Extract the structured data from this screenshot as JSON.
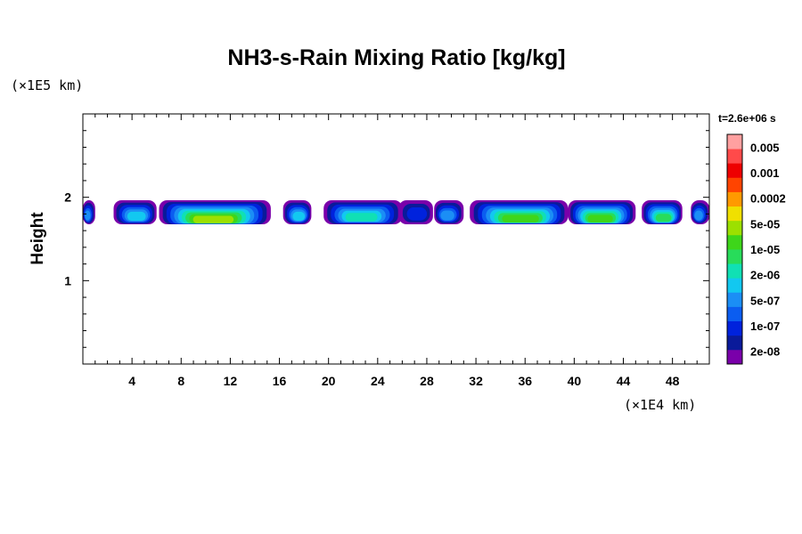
{
  "chart_data": {
    "type": "heatmap",
    "title": "NH3-s-Rain Mixing Ratio [kg/kg]",
    "ylabel": "Height",
    "x_unit": "(×1E4 km)",
    "y_unit": "(×1E5 km)",
    "time_label": "t=2.6e+06 s",
    "xlim": [
      0,
      51
    ],
    "ylim": [
      0,
      3
    ],
    "x_ticks": [
      4,
      8,
      12,
      16,
      20,
      24,
      28,
      32,
      36,
      40,
      44,
      48
    ],
    "y_ticks": [
      1,
      2
    ],
    "colorbar": {
      "colors": [
        "#7a00aa",
        "#0a1a9a",
        "#0022dd",
        "#0b5df0",
        "#1b8ef5",
        "#12c8f0",
        "#10e0b4",
        "#28dc5a",
        "#3ed61a",
        "#9ce000",
        "#f0e000",
        "#ff9a00",
        "#ff4400",
        "#ee0000",
        "#ff4a4a",
        "#ffa0a0"
      ],
      "labels": [
        "2e-08",
        "1e-07",
        "5e-07",
        "2e-06",
        "1e-05",
        "5e-05",
        "0.0002",
        "0.001",
        "0.005"
      ]
    },
    "cloud_band": {
      "y_center": 1.82,
      "segments": [
        {
          "x0": 0.0,
          "x1": 1.0,
          "peak_level": 4
        },
        {
          "x0": 2.5,
          "x1": 6.0,
          "peak_level": 5
        },
        {
          "x0": 6.2,
          "x1": 15.3,
          "peak_level": 9
        },
        {
          "x0": 16.3,
          "x1": 18.6,
          "peak_level": 5
        },
        {
          "x0": 19.6,
          "x1": 26.0,
          "peak_level": 6
        },
        {
          "x0": 25.7,
          "x1": 28.5,
          "peak_level": 2
        },
        {
          "x0": 28.6,
          "x1": 31.0,
          "peak_level": 4
        },
        {
          "x0": 31.5,
          "x1": 39.5,
          "peak_level": 8
        },
        {
          "x0": 39.5,
          "x1": 45.0,
          "peak_level": 8
        },
        {
          "x0": 45.5,
          "x1": 48.8,
          "peak_level": 7
        },
        {
          "x0": 49.5,
          "x1": 51.0,
          "peak_level": 4
        }
      ]
    }
  }
}
